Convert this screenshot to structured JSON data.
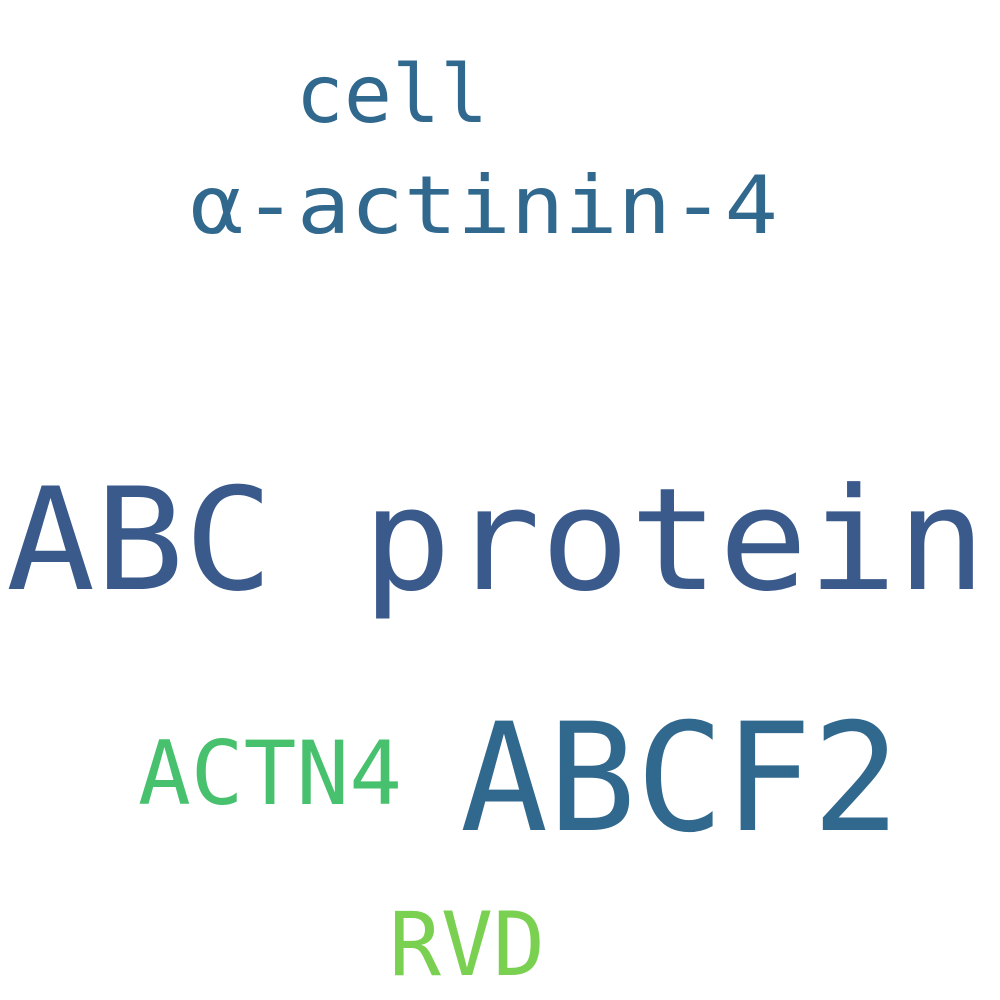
{
  "words": [
    {
      "id": "cell",
      "text": "cell",
      "color": "#31688e"
    },
    {
      "id": "alpha-actinin-4",
      "text": "α-actinin-4",
      "color": "#31688e"
    },
    {
      "id": "abc-protein",
      "text": "ABC protein",
      "color": "#3b5a8c"
    },
    {
      "id": "actn4",
      "text": "ACTN4",
      "color": "#48c16e"
    },
    {
      "id": "abcf2",
      "text": "ABCF2",
      "color": "#31688e"
    },
    {
      "id": "rvd",
      "text": "RVD",
      "color": "#7ad151"
    }
  ]
}
